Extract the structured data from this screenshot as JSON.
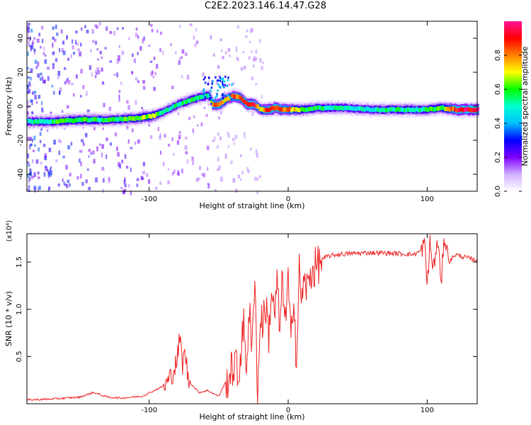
{
  "title": "C2E2.2023.146.14.47.G28",
  "chart_data": [
    {
      "type": "heatmap",
      "xlabel": "Height of straight line (km)",
      "ylabel": "Frequency (Hz)",
      "xlim": [
        -188,
        136
      ],
      "ylim": [
        -50,
        50
      ],
      "x_ticks": [
        -100,
        0,
        100
      ],
      "y_ticks": [
        -40,
        -20,
        0,
        20,
        40
      ],
      "grid": false,
      "colorbar": {
        "label": "Normalized spectral amplitude",
        "range": [
          0,
          1
        ],
        "ticks": [
          0.0,
          0.2,
          0.4,
          0.6,
          0.8
        ],
        "tick_labels": [
          "0.0",
          "0.2",
          "0.4",
          "0.6",
          "0.8"
        ],
        "colors": [
          "#ffffff",
          "#d0b0ff",
          "#8000ff",
          "#0000ff",
          "#00bfff",
          "#00ffd0",
          "#00ff00",
          "#ffff00",
          "#ff8000",
          "#ff0000",
          "#ff1493"
        ]
      },
      "ridge": {
        "x": [
          -188,
          -170,
          -150,
          -130,
          -110,
          -100,
          -95,
          -90,
          -80,
          -70,
          -60,
          -57,
          -55,
          -50,
          -45,
          -40,
          -35,
          -30,
          -25,
          -20,
          -15,
          -10,
          -5,
          0,
          10,
          20,
          40,
          60,
          80,
          100,
          110,
          120,
          136
        ],
        "y": [
          -9,
          -9,
          -8,
          -8,
          -7,
          -6,
          -5,
          -3,
          1,
          4,
          6,
          6,
          1,
          1,
          4,
          6,
          5,
          1,
          1,
          -2,
          -2,
          -1,
          -2,
          -2,
          -2,
          -1,
          -1,
          -2,
          -2,
          -2,
          -1,
          -2,
          -2
        ],
        "amplitude": [
          0.5,
          0.55,
          0.6,
          0.55,
          0.6,
          0.7,
          0.6,
          0.5,
          0.5,
          0.55,
          0.5,
          0.55,
          0.85,
          0.85,
          0.7,
          0.85,
          0.8,
          0.95,
          0.9,
          0.75,
          0.9,
          0.9,
          0.85,
          0.8,
          0.6,
          0.55,
          0.5,
          0.5,
          0.55,
          0.55,
          0.6,
          0.9,
          0.95
        ]
      }
    },
    {
      "type": "line",
      "xlabel": "Height of straight line (km)",
      "ylabel": "SNR (10 * v/v)",
      "y_multiplier": "(x10⁴)",
      "xlim": [
        -188,
        136
      ],
      "ylim": [
        0,
        1.8
      ],
      "x_ticks": [
        -100,
        0,
        100
      ],
      "y_ticks": [
        0.5,
        1.0,
        1.5
      ],
      "y_tick_labels": [
        "0.5",
        "1.0",
        "1.5"
      ],
      "grid": false,
      "series": [
        {
          "color": "#ee2222",
          "x": [
            -188,
            -170,
            -150,
            -140,
            -130,
            -120,
            -105,
            -95,
            -88,
            -84,
            -80,
            -78,
            -76,
            -74,
            -72,
            -68,
            -64,
            -58,
            -50,
            -46,
            -42,
            -38,
            -36,
            -34,
            -32,
            -30,
            -28,
            -26,
            -24,
            -22,
            -20,
            -18,
            -16,
            -14,
            -12,
            -10,
            -8,
            -6,
            -4,
            -2,
            0,
            2,
            4,
            6,
            8,
            10,
            12,
            14,
            16,
            20,
            24,
            28,
            35,
            45,
            60,
            80,
            90,
            96,
            98,
            100,
            102,
            104,
            106,
            108,
            110,
            112,
            116,
            120,
            130,
            136
          ],
          "y": [
            0.04,
            0.05,
            0.07,
            0.12,
            0.07,
            0.06,
            0.08,
            0.15,
            0.2,
            0.3,
            0.45,
            0.7,
            0.42,
            0.55,
            0.25,
            0.18,
            0.12,
            0.14,
            0.08,
            0.2,
            0.3,
            0.45,
            0.22,
            0.6,
            0.8,
            0.42,
            1.0,
            0.5,
            1.48,
            0.02,
            0.95,
            0.85,
            1.05,
            0.72,
            1.22,
            0.9,
            1.28,
            0.75,
            1.35,
            0.85,
            1.3,
            0.6,
            1.25,
            0.4,
            1.4,
            1.1,
            1.3,
            1.2,
            1.38,
            1.45,
            1.52,
            1.56,
            1.58,
            1.59,
            1.6,
            1.59,
            1.58,
            1.62,
            1.72,
            1.25,
            1.7,
            1.45,
            1.55,
            1.74,
            1.2,
            1.78,
            1.5,
            1.58,
            1.54,
            1.52
          ]
        }
      ]
    }
  ]
}
